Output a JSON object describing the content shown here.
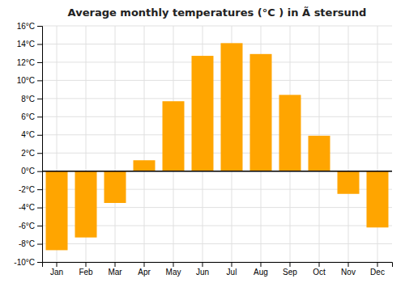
{
  "chart_data": {
    "type": "bar",
    "title": "Average monthly temperatures (°C ) in Ã stersund",
    "categories": [
      "Jan",
      "Feb",
      "Mar",
      "Apr",
      "May",
      "Jun",
      "Jul",
      "Aug",
      "Sep",
      "Oct",
      "Nov",
      "Dec"
    ],
    "values": [
      -8.7,
      -7.3,
      -3.5,
      1.2,
      7.7,
      12.7,
      14.1,
      12.9,
      8.4,
      3.9,
      -2.5,
      -6.2
    ],
    "color": "#FFA500",
    "ylim": [
      -10,
      16
    ],
    "yticks": [
      {
        "value": -10,
        "label": "-10°C"
      },
      {
        "value": -8,
        "label": "-8°C"
      },
      {
        "value": -6,
        "label": "-6°C"
      },
      {
        "value": -4,
        "label": "-4°C"
      },
      {
        "value": -2,
        "label": "-2°C"
      },
      {
        "value": 0,
        "label": "0°C"
      },
      {
        "value": 2,
        "label": "2°C"
      },
      {
        "value": 4,
        "label": "4°C"
      },
      {
        "value": 6,
        "label": "6°C"
      },
      {
        "value": 8,
        "label": "8°C"
      },
      {
        "value": 10,
        "label": "10°C"
      },
      {
        "value": 12,
        "label": "12°C"
      },
      {
        "value": 14,
        "label": "14°C"
      },
      {
        "value": 16,
        "label": "16°C"
      }
    ],
    "grid": true
  }
}
